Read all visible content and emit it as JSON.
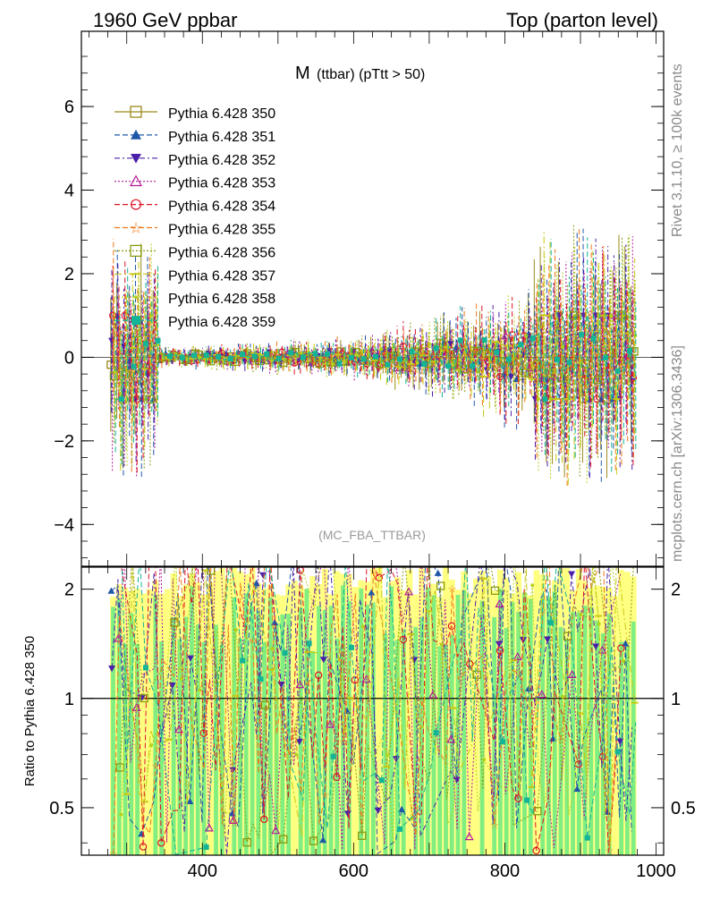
{
  "header": {
    "left": "1960 GeV ppbar",
    "right": "Top (parton level)"
  },
  "side_labels": {
    "rivet": "Rivet 3.1.10, ≥ 100k events",
    "mcplots": "mcplots.cern.ch [arXiv:1306.3436]"
  },
  "chart_data": [
    {
      "type": "line",
      "panel": "main",
      "title_main": "M",
      "title_sub": "(ttbar) (pTtt > 50)",
      "watermark": "(MC_FBA_TTBAR)",
      "xlim": [
        240,
        1010
      ],
      "ylim": [
        -5.0,
        7.8
      ],
      "yticks": [
        -4,
        -2,
        0,
        2,
        4,
        6
      ],
      "ytick_labels": [
        "−4",
        "−2",
        "0",
        "2",
        "4",
        "6"
      ],
      "series": [
        {
          "name": "Pythia 6.428 350",
          "color": "#9a8a1a",
          "marker": "square-open",
          "dash": ""
        },
        {
          "name": "Pythia 6.428 351",
          "color": "#1f57a8",
          "marker": "triangle-up",
          "dash": "6,3"
        },
        {
          "name": "Pythia 6.428 352",
          "color": "#4b20a8",
          "marker": "triangle-down",
          "dash": "6,3,2,3"
        },
        {
          "name": "Pythia 6.428 353",
          "color": "#b3199a",
          "marker": "triangle-open",
          "dash": "2,2"
        },
        {
          "name": "Pythia 6.428 354",
          "color": "#dc1428",
          "marker": "circle-open",
          "dash": "6,3"
        },
        {
          "name": "Pythia 6.428 355",
          "color": "#f07818",
          "marker": "star",
          "dash": "6,3"
        },
        {
          "name": "Pythia 6.428 356",
          "color": "#8a9a10",
          "marker": "square-open",
          "dash": "2,2"
        },
        {
          "name": "Pythia 6.428 357",
          "color": "#c8c814",
          "marker": "tick",
          "dash": "8,3,2,3"
        },
        {
          "name": "Pythia 6.428 358",
          "color": "#b4d21a",
          "marker": "dot",
          "dash": "2,2"
        },
        {
          "name": "Pythia 6.428 359",
          "color": "#14b496",
          "marker": "square",
          "dash": "6,3"
        }
      ]
    },
    {
      "type": "line",
      "panel": "ratio",
      "ylabel": "Ratio to Pythia 6.428 350",
      "xlim": [
        240,
        1010
      ],
      "ylim": [
        0.37,
        2.3
      ],
      "yticks": [
        0.5,
        1,
        2
      ],
      "ytick_labels": [
        "0.5",
        "1",
        "2"
      ],
      "xticks": [
        400,
        600,
        800,
        1000
      ],
      "xtick_labels": [
        "400",
        "600",
        "800",
        "1000"
      ],
      "reference_line": 1.0,
      "band_colors": [
        "#ffff80",
        "#80ee80"
      ]
    }
  ]
}
